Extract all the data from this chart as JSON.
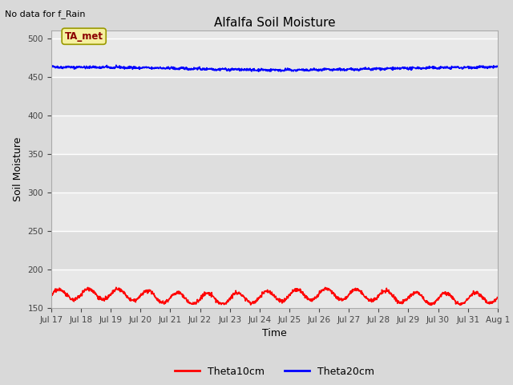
{
  "title": "Alfalfa Soil Moisture",
  "xlabel": "Time",
  "ylabel": "Soil Moisture",
  "no_data_text": "No data for f_Rain",
  "ta_met_label": "TA_met",
  "ylim": [
    150,
    510
  ],
  "yticks": [
    150,
    200,
    250,
    300,
    350,
    400,
    450,
    500
  ],
  "background_color": "#d9d9d9",
  "plot_bg_color": "#e8e8e8",
  "grid_color": "#ffffff",
  "theta10_color": "#ff0000",
  "theta20_color": "#0000ff",
  "legend_labels": [
    "Theta10cm",
    "Theta20cm"
  ],
  "x_tick_labels": [
    "Jul 17",
    "Jul 18",
    "Jul 19",
    "Jul 20",
    "Jul 21",
    "Jul 22",
    "Jul 23",
    "Jul 24",
    "Jul 25",
    "Jul 26",
    "Jul 27",
    "Jul 28",
    "Jul 29",
    "Jul 30",
    "Jul 31",
    "Aug 1"
  ],
  "n_points": 1440,
  "theta20_base": 463,
  "theta10_base": 165,
  "theta10_amplitude": 7
}
